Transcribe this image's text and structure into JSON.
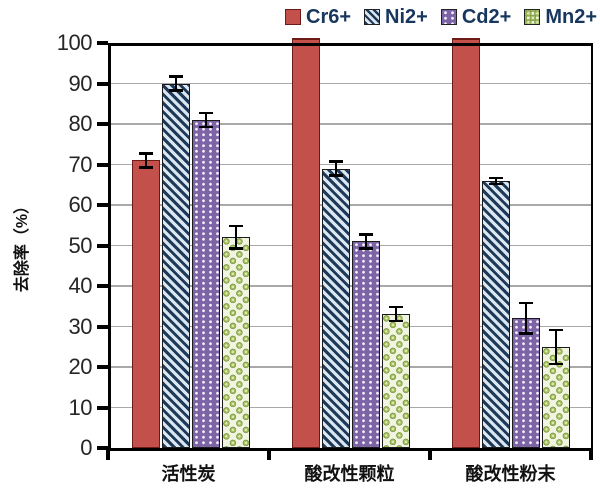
{
  "chart_data": {
    "type": "bar",
    "title": "",
    "xlabel": "",
    "ylabel": "去除率（%）",
    "ylim": [
      0,
      100
    ],
    "ytick_step": 10,
    "grid": true,
    "legend_position": "top-right",
    "categories": [
      "活性炭",
      "酸改性颗粒",
      "酸改性粉末"
    ],
    "series": [
      {
        "name": "Cr6+",
        "pattern": "solid",
        "color": "#c4504c",
        "values": [
          71,
          100,
          100
        ],
        "errors": [
          2,
          0,
          0
        ]
      },
      {
        "name": "Ni2+",
        "pattern": "hatch",
        "color": "#1d3a59",
        "values": [
          90,
          69,
          66
        ],
        "errors": [
          2,
          2,
          1
        ]
      },
      {
        "name": "Cd2+",
        "pattern": "dots",
        "color": "#7d64a6",
        "values": [
          81,
          51,
          32
        ],
        "errors": [
          2,
          2,
          4
        ]
      },
      {
        "name": "Mn2+",
        "pattern": "circles",
        "color": "#9bbb59",
        "values": [
          52,
          33,
          25
        ],
        "errors": [
          3,
          2,
          4.5
        ]
      }
    ],
    "error_bar_color": "#000000",
    "gridline_color": "#a9a9a9",
    "axis_color": "#000000",
    "legend_text_color": "#17375e"
  }
}
